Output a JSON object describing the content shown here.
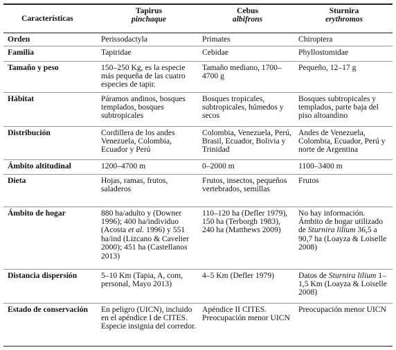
{
  "table": {
    "header": {
      "label": "Características",
      "columns": [
        {
          "genus": "Tapirus",
          "species": "pinchaque"
        },
        {
          "genus": "Cebus",
          "species": "albifrons"
        },
        {
          "genus": "Sturnira",
          "species": "erythromos"
        }
      ]
    },
    "rows": [
      {
        "label": "Orden",
        "cells": [
          "Perissodactyla",
          "Primates",
          "Chiroptera"
        ]
      },
      {
        "label": "Familia",
        "cells": [
          "Tapiridae",
          "Cebidae",
          "Phyllostomidae"
        ]
      },
      {
        "label": "Tamaño y peso",
        "cells": [
          "150–250 Kg, es la especie más pequeña de las cuatro especies de tapir.",
          "Tamaño mediano, 1700–4700 g",
          "Pequeño, 12–17 g"
        ]
      },
      {
        "label": "Hábitat",
        "cells": [
          "Páramos andinos, bosques templados, bosques subtropicales",
          "Bosques tropicales, subtropicales, húmedos y secos",
          "Bosques subtropicales y templados, parte baja del piso altoandino"
        ]
      },
      {
        "label": "Distribución",
        "cells": [
          "Cordillera de los andes Venezuela, Colombia, Ecuador y Perú",
          "Colombia, Venezuela, Perú, Brasil, Ecuador, Bolivia y Trinidad",
          "Andes de Venezuela, Colombia, Ecuador, Perú y norte de Argentina"
        ]
      },
      {
        "label": "Ámbito altitudinal",
        "cells": [
          "1200–4700 m",
          "0–2000 m",
          "1100–3400 m"
        ]
      },
      {
        "label": "Dieta",
        "cells": [
          "Hojas, ramas, frutos, saladeros",
          "Frutos, insectos, pequeños vertebrados, semillas",
          "Frutos"
        ]
      },
      {
        "label": "Ámbito de hogar",
        "cells": [
          [
            "880 ha/adulto y (Downer 1996); 400 ha/individuo (Acosta ",
            {
              "italic": "et al."
            },
            " 1996) y 551 ha/ind (Lizcano & Cavelier 2000); 451 ha (Castellanos 2013)"
          ],
          "110–120 ha (Defler 1979), 150 ha (Terborgh 1983), 240 ha (Matthews 2009)",
          [
            "No hay información. Ámbito de hogar utilizado de ",
            {
              "italic": "Sturnira lilium"
            },
            " 36,5 a 90,7 ha (Loayza & Loiselle 2008)"
          ]
        ]
      },
      {
        "label": "Distancia dispersión",
        "cells": [
          "5–10 Km (Tapia, A, com, personal, Mayo 2013)",
          "4–5 Km (Defler 1979)",
          [
            "Datos de ",
            {
              "italic": "Sturnira lilium"
            },
            " 1–1,5 Km (Loayza & Loiselle 2008)"
          ]
        ]
      },
      {
        "label": "Estado de conservación",
        "cells": [
          "En peligro (UICN), incluido en el apéndice I de CITES. Especie insignia del corredor.",
          "Apéndice II CITES. Preocupación menor UICN",
          "Preocupación menor UICN"
        ]
      }
    ]
  }
}
